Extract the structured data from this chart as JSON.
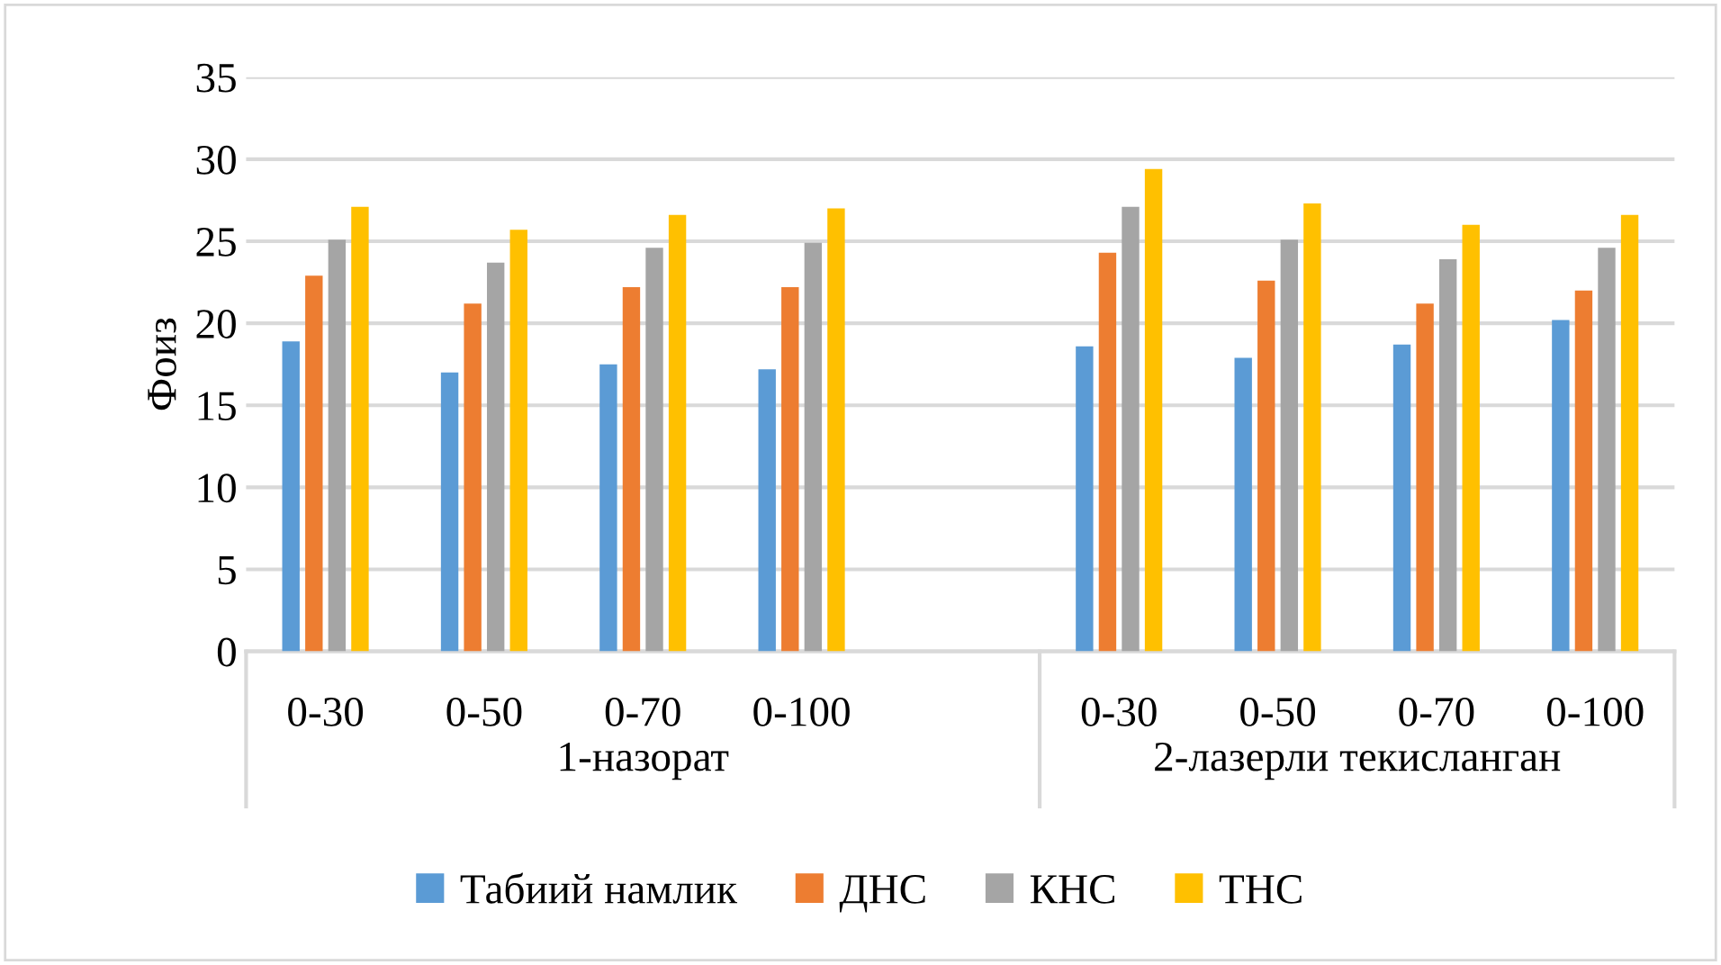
{
  "chart_data": {
    "type": "bar",
    "ylabel": "Фоиз",
    "categories": [
      "0-30",
      "0-50",
      "0-70",
      "0-100",
      null,
      "0-30",
      "0-50",
      "0-70",
      "0-100"
    ],
    "annotations": [
      "1-назорат",
      "2-лазерли текисланган"
    ],
    "series": [
      {
        "name": "Табиий намлик",
        "color": "#5b9bd5",
        "values": [
          18.9,
          17.0,
          17.5,
          17.2,
          null,
          18.6,
          17.9,
          18.7,
          20.2
        ]
      },
      {
        "name": "ДНС",
        "color": "#ed7d31",
        "values": [
          22.9,
          21.2,
          22.2,
          22.2,
          null,
          24.3,
          22.6,
          21.2,
          22.0
        ]
      },
      {
        "name": "КНС",
        "color": "#a5a5a5",
        "values": [
          25.1,
          23.7,
          24.6,
          24.9,
          null,
          27.1,
          25.1,
          23.9,
          24.6
        ]
      },
      {
        "name": "ТНС",
        "color": "#ffc000",
        "values": [
          27.1,
          25.7,
          26.6,
          27.0,
          null,
          29.4,
          27.3,
          26.0,
          26.6
        ]
      }
    ],
    "ylim": [
      0,
      35
    ],
    "yticks": [
      0,
      5,
      10,
      15,
      20,
      25,
      30,
      35
    ],
    "grid": "y",
    "legend": "bottom"
  }
}
